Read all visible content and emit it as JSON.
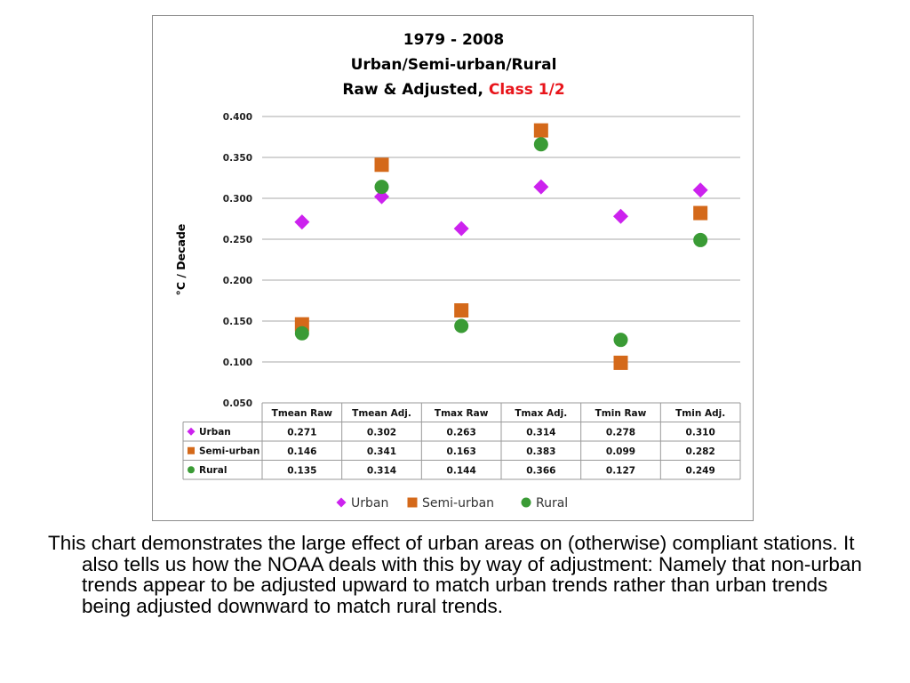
{
  "chart_data": {
    "type": "scatter",
    "title_lines": [
      "1979 - 2008",
      "Urban/Semi-urban/Rural"
    ],
    "title_line3_black": "Raw & Adjusted, ",
    "title_line3_red": "Class 1/2",
    "ylabel": "°C / Decade",
    "ylim": [
      0.05,
      0.4
    ],
    "yticks": [
      "0.050",
      "0.100",
      "0.150",
      "0.200",
      "0.250",
      "0.300",
      "0.350",
      "0.400"
    ],
    "categories": [
      "Tmean Raw",
      "Tmean Adj.",
      "Tmax Raw",
      "Tmax Adj.",
      "Tmin Raw",
      "Tmin Adj."
    ],
    "grid": "horizontal",
    "legend_position": "bottom",
    "series": [
      {
        "name": "Urban",
        "marker": "diamond",
        "color": "#cc22ee",
        "values": [
          0.271,
          0.302,
          0.263,
          0.314,
          0.278,
          0.31
        ],
        "labels": [
          "0.271",
          "0.302",
          "0.263",
          "0.314",
          "0.278",
          "0.310"
        ]
      },
      {
        "name": "Semi-urban",
        "marker": "square",
        "color": "#d4691a",
        "values": [
          0.146,
          0.341,
          0.163,
          0.383,
          0.099,
          0.282
        ],
        "labels": [
          "0.146",
          "0.341",
          "0.163",
          "0.383",
          "0.099",
          "0.282"
        ]
      },
      {
        "name": "Rural",
        "marker": "circle",
        "color": "#3a9b35",
        "values": [
          0.135,
          0.314,
          0.144,
          0.366,
          0.127,
          0.249
        ],
        "labels": [
          "0.135",
          "0.314",
          "0.144",
          "0.366",
          "0.127",
          "0.249"
        ]
      }
    ]
  },
  "caption": "This chart demonstrates the large effect of urban areas on (otherwise) compliant stations. It also tells us how the NOAA deals with this by way of adjustment: Namely that non-urban trends appear to be adjusted upward to match urban trends rather than urban trends being adjusted downward to match rural trends."
}
